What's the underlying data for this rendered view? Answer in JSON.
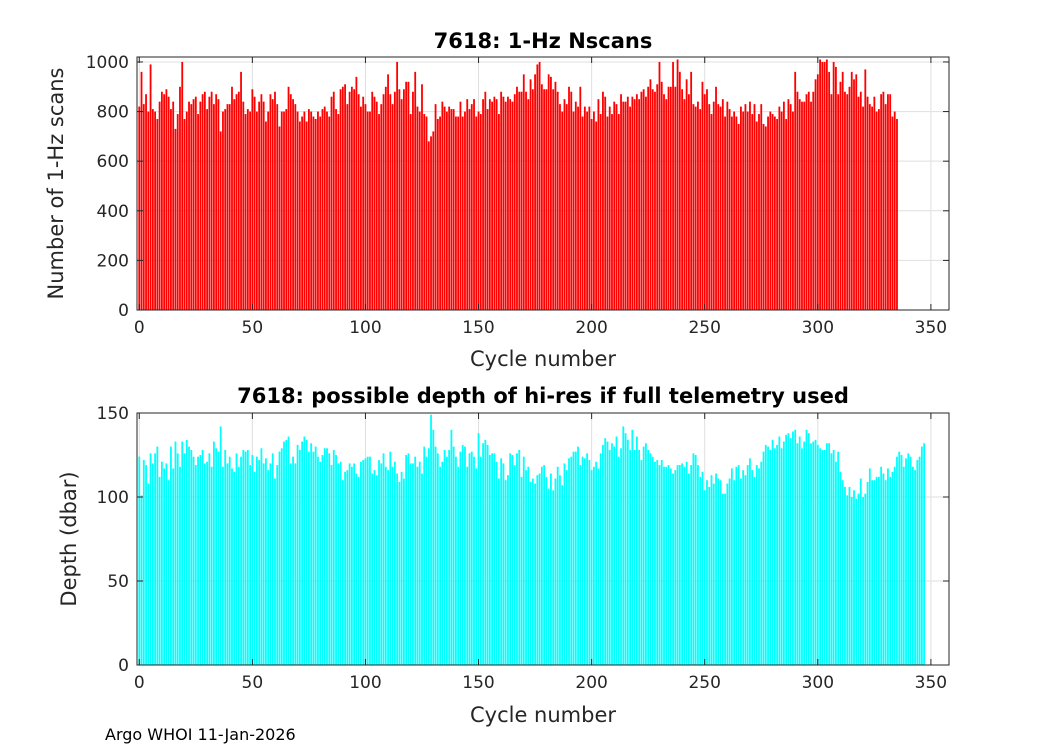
{
  "footer": "Argo WHOI 11-Jan-2026",
  "chart_data": [
    {
      "type": "bar",
      "title": "7618: 1-Hz Nscans",
      "xlabel": "Cycle number",
      "ylabel": "Number of 1-Hz scans",
      "xlim": [
        -1,
        358
      ],
      "ylim": [
        0,
        1020
      ],
      "xticks": [
        0,
        50,
        100,
        150,
        200,
        250,
        300,
        350
      ],
      "yticks": [
        0,
        200,
        400,
        600,
        800,
        1000
      ],
      "grid": true,
      "color": "#ff0000",
      "x_start": 0,
      "values": [
        820,
        960,
        830,
        870,
        800,
        990,
        810,
        800,
        770,
        840,
        880,
        870,
        890,
        860,
        810,
        840,
        730,
        790,
        900,
        1000,
        770,
        800,
        840,
        830,
        850,
        860,
        790,
        840,
        870,
        880,
        810,
        860,
        880,
        830,
        870,
        850,
        720,
        800,
        810,
        830,
        830,
        900,
        850,
        870,
        880,
        960,
        840,
        790,
        810,
        800,
        890,
        860,
        800,
        840,
        870,
        840,
        760,
        800,
        870,
        850,
        880,
        830,
        740,
        800,
        800,
        810,
        900,
        870,
        850,
        830,
        800,
        760,
        780,
        800,
        760,
        810,
        800,
        780,
        770,
        800,
        780,
        810,
        820,
        800,
        780,
        860,
        880,
        810,
        790,
        890,
        900,
        910,
        830,
        880,
        900,
        890,
        940,
        870,
        820,
        860,
        830,
        800,
        800,
        880,
        860,
        840,
        790,
        830,
        870,
        900,
        950,
        870,
        830,
        880,
        1000,
        890,
        850,
        890,
        920,
        920,
        790,
        880,
        960,
        820,
        800,
        910,
        790,
        780,
        680,
        700,
        720,
        830,
        770,
        780,
        840,
        820,
        800,
        820,
        810,
        810,
        780,
        780,
        840,
        780,
        800,
        850,
        810,
        830,
        850,
        780,
        800,
        790,
        850,
        880,
        810,
        850,
        840,
        860,
        850,
        790,
        880,
        860,
        840,
        860,
        850,
        840,
        870,
        900,
        880,
        880,
        950,
        880,
        850,
        930,
        890,
        950,
        990,
        1000,
        910,
        890,
        890,
        950,
        940,
        890,
        920,
        880,
        830,
        800,
        850,
        830,
        900,
        880,
        800,
        840,
        820,
        900,
        780,
        820,
        800,
        820,
        770,
        800,
        760,
        850,
        790,
        880,
        860,
        780,
        820,
        790,
        840,
        830,
        790,
        870,
        840,
        840,
        860,
        820,
        860,
        850,
        870,
        850,
        880,
        890,
        860,
        900,
        930,
        890,
        880,
        910,
        1000,
        920,
        870,
        850,
        900,
        900,
        1000,
        900,
        1010,
        960,
        890,
        850,
        930,
        870,
        960,
        830,
        820,
        840,
        810,
        920,
        870,
        890,
        830,
        790,
        840,
        900,
        830,
        820,
        850,
        780,
        840,
        810,
        780,
        800,
        780,
        750,
        820,
        800,
        830,
        800,
        840,
        790,
        830,
        760,
        790,
        830,
        750,
        740,
        780,
        800,
        790,
        780,
        770,
        820,
        800,
        840,
        770,
        850,
        830,
        800,
        960,
        880,
        850,
        840,
        840,
        870,
        880,
        840,
        880,
        930,
        950,
        1010,
        1000,
        1000,
        1010,
        960,
        870,
        1000,
        980,
        870,
        920,
        960,
        880,
        870,
        900,
        960,
        930,
        950,
        860,
        880,
        820,
        970,
        860,
        830,
        820,
        860,
        800,
        810,
        870,
        880,
        830,
        870,
        870,
        780,
        800,
        770
      ]
    },
    {
      "type": "bar",
      "title": "7618: possible depth of hi-res if full telemetry used",
      "xlabel": "Cycle number",
      "ylabel": "Depth (dbar)",
      "xlim": [
        -1,
        358
      ],
      "ylim": [
        0,
        150
      ],
      "xticks": [
        0,
        50,
        100,
        150,
        200,
        250,
        300,
        350
      ],
      "yticks": [
        0,
        50,
        100,
        150
      ],
      "grid": true,
      "color": "#00ffff",
      "x_start": 0,
      "values": [
        124,
        101,
        122,
        119,
        108,
        126,
        120,
        126,
        130,
        112,
        121,
        117,
        120,
        110,
        130,
        117,
        133,
        126,
        118,
        133,
        126,
        134,
        130,
        128,
        124,
        119,
        124,
        125,
        128,
        120,
        121,
        126,
        118,
        133,
        129,
        127,
        142,
        118,
        128,
        120,
        124,
        117,
        115,
        126,
        118,
        124,
        128,
        127,
        128,
        119,
        125,
        115,
        124,
        122,
        129,
        120,
        123,
        116,
        120,
        126,
        111,
        119,
        127,
        129,
        133,
        134,
        136,
        120,
        124,
        120,
        131,
        128,
        133,
        136,
        134,
        127,
        132,
        127,
        130,
        124,
        121,
        125,
        129,
        129,
        126,
        119,
        128,
        125,
        120,
        121,
        110,
        115,
        116,
        120,
        118,
        120,
        114,
        112,
        121,
        122,
        123,
        124,
        124,
        114,
        116,
        113,
        122,
        120,
        126,
        118,
        116,
        127,
        118,
        121,
        114,
        109,
        115,
        111,
        125,
        126,
        120,
        120,
        124,
        118,
        121,
        114,
        130,
        124,
        129,
        149,
        140,
        130,
        126,
        118,
        121,
        128,
        124,
        128,
        140,
        130,
        124,
        118,
        127,
        131,
        130,
        118,
        126,
        127,
        124,
        117,
        138,
        124,
        132,
        134,
        131,
        125,
        126,
        126,
        121,
        111,
        123,
        120,
        110,
        113,
        126,
        125,
        119,
        126,
        128,
        112,
        124,
        116,
        118,
        109,
        111,
        108,
        113,
        114,
        118,
        119,
        112,
        105,
        114,
        104,
        111,
        118,
        113,
        107,
        120,
        116,
        123,
        124,
        127,
        127,
        130,
        119,
        124,
        123,
        126,
        122,
        116,
        118,
        121,
        117,
        126,
        131,
        135,
        133,
        128,
        132,
        130,
        136,
        124,
        129,
        142,
        138,
        134,
        128,
        140,
        128,
        136,
        128,
        122,
        130,
        132,
        128,
        126,
        124,
        121,
        122,
        119,
        122,
        118,
        118,
        119,
        117,
        114,
        116,
        119,
        119,
        120,
        118,
        121,
        114,
        119,
        126,
        125,
        119,
        112,
        115,
        104,
        110,
        106,
        113,
        108,
        114,
        111,
        110,
        102,
        102,
        108,
        111,
        117,
        110,
        118,
        119,
        111,
        116,
        113,
        119,
        123,
        116,
        112,
        119,
        117,
        121,
        127,
        131,
        130,
        128,
        134,
        129,
        131,
        136,
        129,
        133,
        137,
        138,
        135,
        139,
        140,
        132,
        136,
        129,
        133,
        140,
        138,
        132,
        133,
        134,
        131,
        129,
        128,
        128,
        132,
        132,
        126,
        128,
        121,
        127,
        115,
        110,
        106,
        101,
        106,
        100,
        104,
        99,
        102,
        111,
        100,
        102,
        109,
        117,
        110,
        110,
        112,
        112,
        118,
        114,
        110,
        117,
        112,
        115,
        118,
        124,
        127,
        125,
        118,
        123,
        126,
        124,
        118,
        116,
        122,
        124,
        130,
        132
      ]
    }
  ]
}
